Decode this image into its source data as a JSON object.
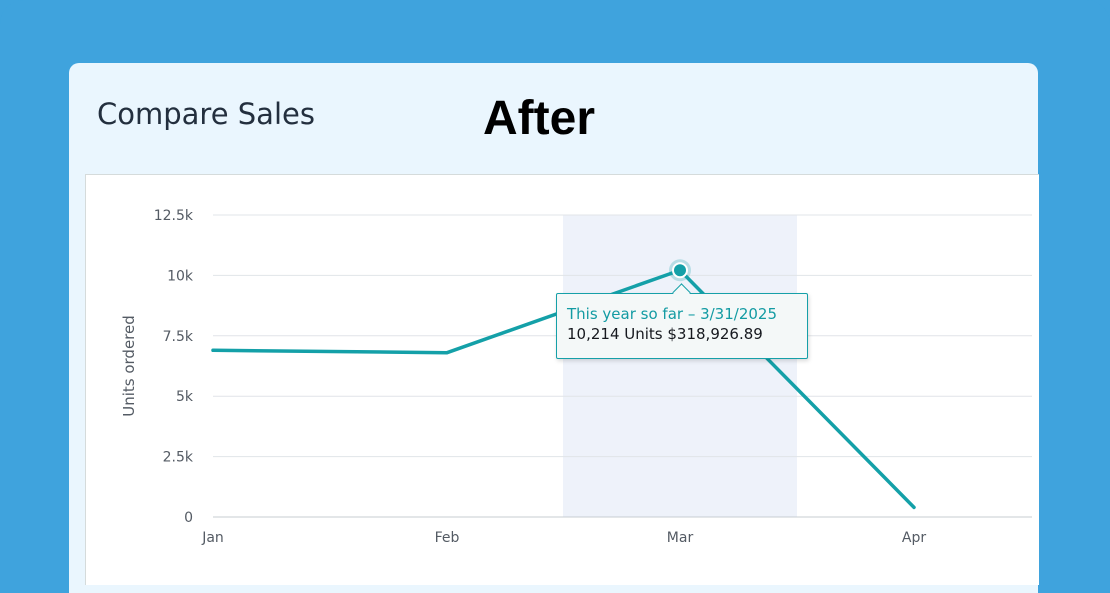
{
  "banner": "After",
  "card": {
    "title": "Compare Sales"
  },
  "tooltip": {
    "title": "This year so far – 3/31/2025",
    "body": "10,214 Units $318,926.89"
  },
  "colors": {
    "page_background": "#3fa3dd",
    "card_background": "#eaf6fe",
    "series_line": "#14a0a8",
    "highlight_band": "#eef2fa",
    "gridline": "#e1e4e8"
  },
  "chart_data": {
    "type": "line",
    "title": "",
    "xlabel": "",
    "ylabel": "Units ordered",
    "categories": [
      "Jan",
      "Feb",
      "Mar",
      "Apr"
    ],
    "y_ticks": [
      0,
      2500,
      5000,
      7500,
      10000,
      12500
    ],
    "y_tick_labels": [
      "0",
      "2.5k",
      "5k",
      "7.5k",
      "10k",
      "12.5k"
    ],
    "ylim": [
      0,
      12500
    ],
    "grid": true,
    "highlighted_category": "Mar",
    "series": [
      {
        "values": [
          6900,
          6800,
          10214,
          400
        ]
      }
    ]
  }
}
